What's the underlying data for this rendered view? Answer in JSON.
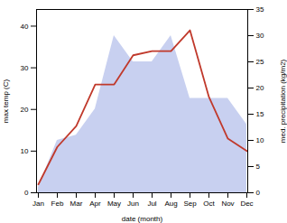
{
  "chart_data": {
    "type": "line",
    "xlabel": "date (month)",
    "ylabel": "max temp (C)",
    "y2label": "med. precipitation (kg/m2)",
    "categories": [
      "Jan",
      "Feb",
      "Mar",
      "Apr",
      "May",
      "Jun",
      "Jul",
      "Aug",
      "Sep",
      "Oct",
      "Nov",
      "Dec"
    ],
    "series": [
      {
        "type": "area",
        "axis": "y2",
        "color": "#c8d0f0",
        "values": [
          1,
          10,
          11,
          16,
          30,
          25,
          25,
          30,
          18,
          18,
          18,
          13
        ]
      },
      {
        "type": "line",
        "color": "#c0392b",
        "values": [
          2,
          11,
          16,
          26,
          26,
          33,
          34,
          34,
          39,
          23,
          13,
          10
        ]
      }
    ],
    "ylim": [
      0,
      44
    ],
    "yticks": [
      0,
      10,
      20,
      30,
      40
    ],
    "y2lim": [
      0,
      35
    ],
    "y2ticks": [
      0,
      5,
      10,
      15,
      20,
      25,
      30,
      35
    ],
    "grid": false
  }
}
